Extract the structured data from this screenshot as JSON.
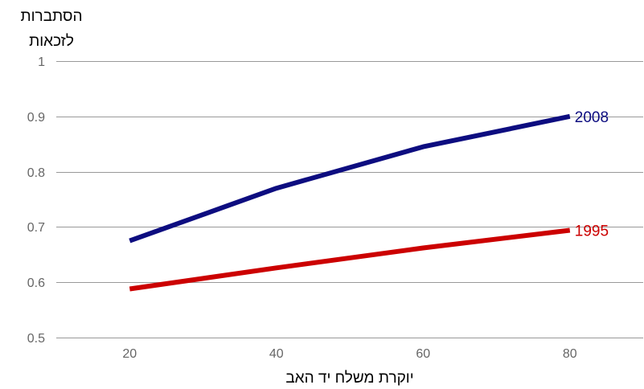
{
  "chart_data": {
    "type": "line",
    "xlabel": "יוקרת משלח יד האב",
    "ylabel_lines": [
      "הסתברות",
      "לזכאות"
    ],
    "xlim": [
      10,
      90
    ],
    "ylim": [
      0.5,
      1.0
    ],
    "x_ticks": [
      20,
      40,
      60,
      80
    ],
    "y_ticks": [
      0.5,
      0.6,
      0.7,
      0.8,
      0.9,
      1.0
    ],
    "y_tick_labels": [
      "0.5",
      "0.6",
      "0.7",
      "0.8",
      "0.9",
      "1"
    ],
    "grid": "horizontal",
    "legend": "none",
    "series": [
      {
        "name": "2008",
        "color": "#0d0d80",
        "x": [
          20,
          40,
          60,
          80
        ],
        "y": [
          0.675,
          0.77,
          0.845,
          0.9
        ]
      },
      {
        "name": "1995",
        "color": "#cc0000",
        "x": [
          20,
          40,
          60,
          80
        ],
        "y": [
          0.588,
          0.626,
          0.662,
          0.694
        ]
      }
    ]
  }
}
